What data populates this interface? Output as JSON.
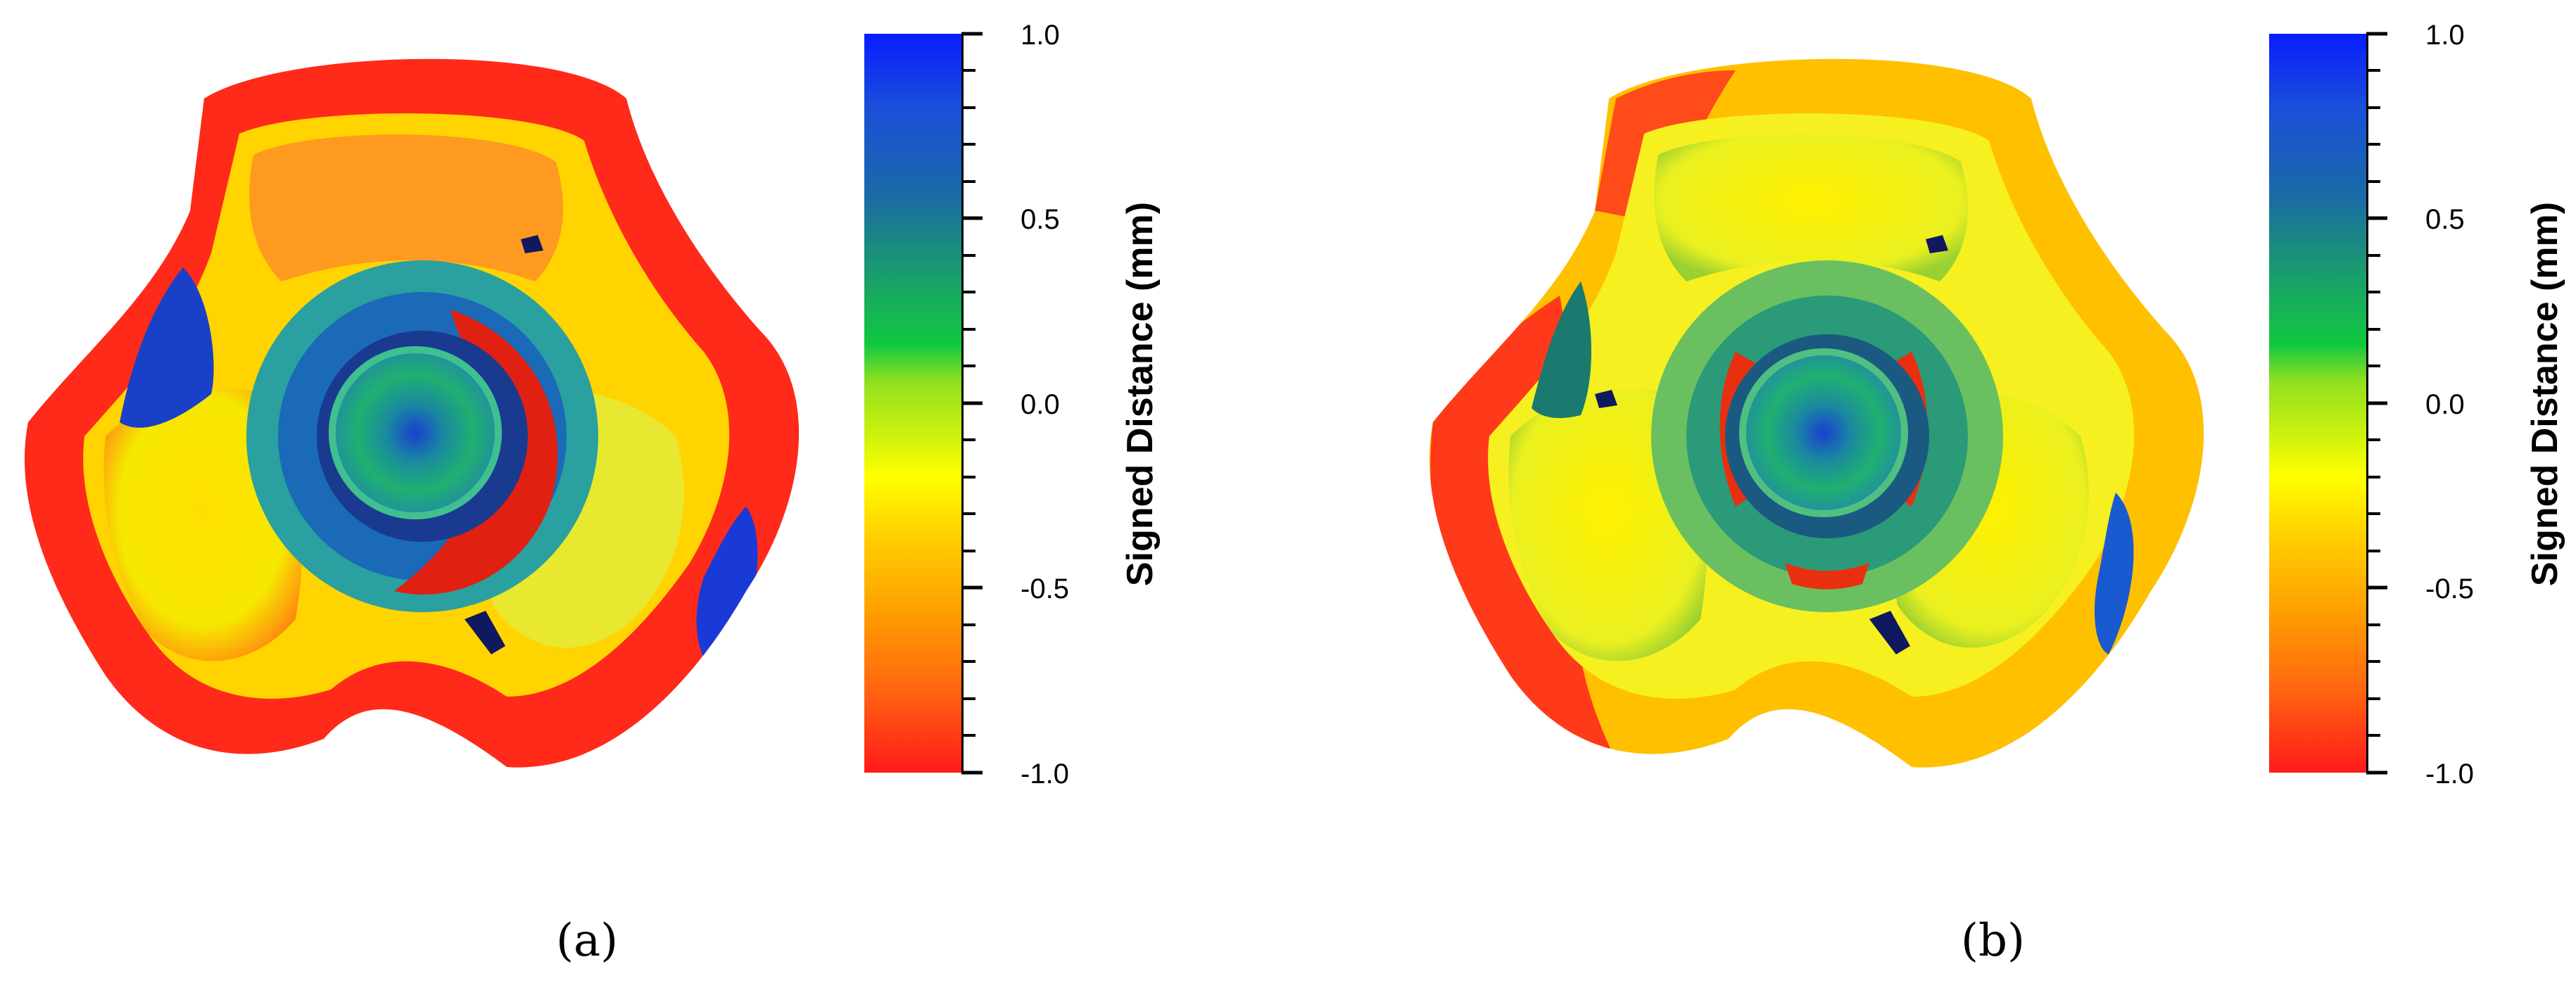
{
  "panels": [
    {
      "caption": "(a)",
      "colorbar": {
        "label": "Signed Distance (mm)",
        "ticks": [
          "1.0",
          "0.5",
          "0.0",
          "-0.5",
          "-1.0"
        ],
        "colors": [
          "#0a1cff",
          "#1aa06a",
          "#ffff00",
          "#ff1a1a"
        ]
      }
    },
    {
      "caption": "(b)",
      "colorbar": {
        "label": "Signed Distance (mm)",
        "ticks": [
          "1.0",
          "0.5",
          "0.0",
          "-0.5",
          "-1.0"
        ],
        "colors": [
          "#0a1cff",
          "#1aa06a",
          "#ffff00",
          "#ff1a1a"
        ]
      }
    }
  ]
}
